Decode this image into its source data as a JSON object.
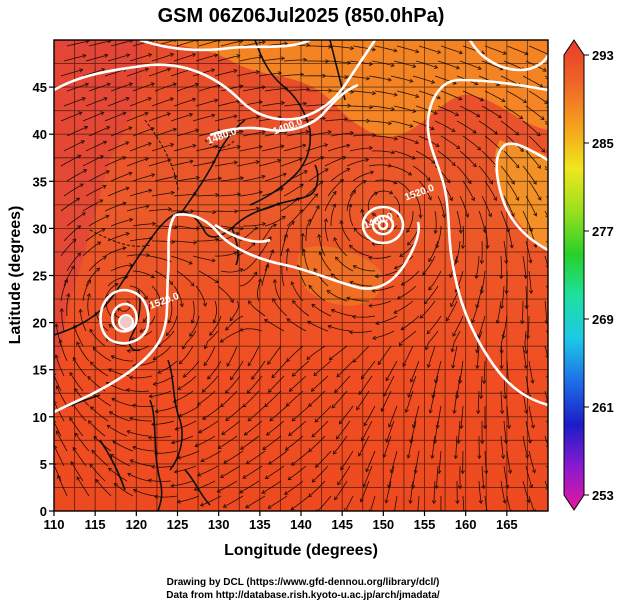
{
  "title": "GSM 06Z06Jul2025 (850.0hPa)",
  "xlabel": "Longitude (degrees)",
  "ylabel": "Latitude  (degrees)",
  "credits": [
    "Drawing by DCL (https://www.gfd-dennou.org/library/dcl/)",
    "Data from http://database.rish.kyoto-u.ac.jp/arch/jmadata/"
  ],
  "chart_data": {
    "type": "heatmap",
    "title": "GSM 06Z06Jul2025 (850.0hPa)",
    "xlabel": "Longitude (degrees)",
    "ylabel": "Latitude  (degrees)",
    "xlim": [
      110,
      170
    ],
    "ylim": [
      0,
      50
    ],
    "xticks": [
      "110",
      "115",
      "120",
      "125",
      "130",
      "135",
      "140",
      "145",
      "150",
      "155",
      "160",
      "165"
    ],
    "yticks": [
      "0",
      "5",
      "10",
      "15",
      "20",
      "25",
      "30",
      "35",
      "40",
      "45"
    ],
    "grid": true,
    "colorbar": {
      "ticks": [
        "293",
        "285",
        "277",
        "269",
        "261",
        "253"
      ],
      "min": 253,
      "max": 293,
      "colors": [
        "#e8189a",
        "#8a1ad0",
        "#1c1cc8",
        "#1e6ee8",
        "#1ec8e6",
        "#1ee0a0",
        "#28d028",
        "#9ae01e",
        "#f0e61e",
        "#f4a01c",
        "#f06428",
        "#e83c28"
      ]
    },
    "contour_labels": [
      {
        "text": "1400.0",
        "lon": 138.5,
        "lat": 40.5
      },
      {
        "text": "1480.0",
        "lon": 130.5,
        "lat": 39.5
      },
      {
        "text": "1480.0",
        "lon": 149.5,
        "lat": 30.5
      },
      {
        "text": "1520.0",
        "lon": 154.5,
        "lat": 33.5
      },
      {
        "text": "1520.0",
        "lon": 123.5,
        "lat": 22.0
      }
    ],
    "lows": [
      {
        "lon": 118.5,
        "lat": 22.0
      },
      {
        "lon": 150.0,
        "lat": 32.5
      }
    ]
  }
}
